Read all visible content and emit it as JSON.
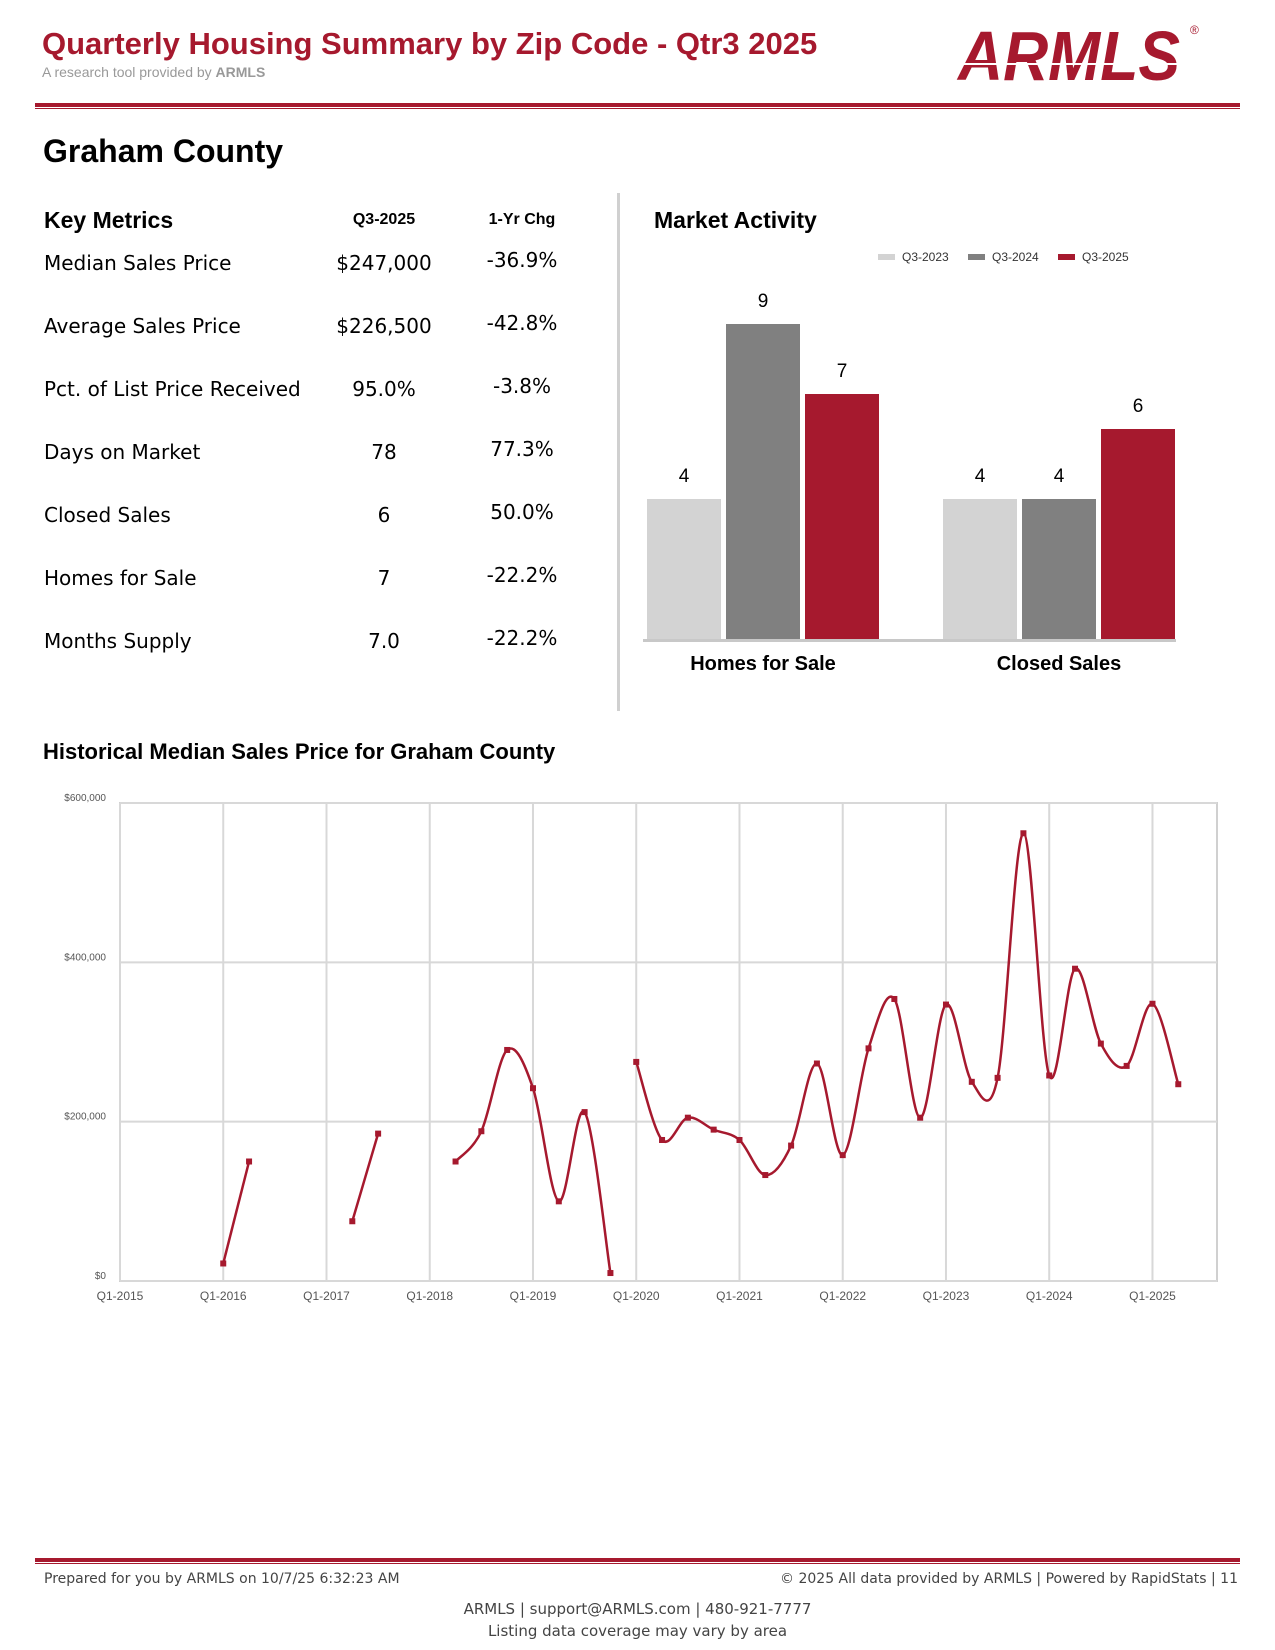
{
  "header": {
    "title": "Quarterly Housing Summary by Zip Code - Qtr3 2025",
    "subtitle_prefix": "A research tool provided by",
    "subtitle_brand": "ARMLS",
    "logo_text": "ARMLS",
    "logo_mark": "®"
  },
  "area": {
    "name": "Graham County"
  },
  "key_metrics": {
    "heading": "Key Metrics",
    "col_current": "Q3-2025",
    "col_change": "1-Yr Chg",
    "rows": [
      {
        "label": "Median Sales Price",
        "value": "$247,000",
        "change": "-36.9%"
      },
      {
        "label": "Average Sales Price",
        "value": "$226,500",
        "change": "-42.8%"
      },
      {
        "label": "Pct. of List Price Received",
        "value": "95.0%",
        "change": "-3.8%"
      },
      {
        "label": "Days on Market",
        "value": "78",
        "change": "77.3%"
      },
      {
        "label": "Closed Sales",
        "value": "6",
        "change": "50.0%"
      },
      {
        "label": "Homes for Sale",
        "value": "7",
        "change": "-22.2%"
      },
      {
        "label": "Months Supply",
        "value": "7.0",
        "change": "-22.2%"
      }
    ]
  },
  "chart_data": [
    {
      "type": "bar",
      "title": "Market Activity",
      "categories": [
        "Homes for Sale",
        "Closed Sales"
      ],
      "series": [
        {
          "name": "Q3-2023",
          "values": [
            4,
            4
          ],
          "color": "#d3d3d3"
        },
        {
          "name": "Q3-2024",
          "values": [
            9,
            4
          ],
          "color": "#808080"
        },
        {
          "name": "Q3-2025",
          "values": [
            7,
            6
          ],
          "color": "#a6192e"
        }
      ],
      "legend": "top-right",
      "ylim": [
        0,
        10
      ]
    },
    {
      "type": "line",
      "title": "Historical Median Sales Price for Graham County",
      "color": "#a6192e",
      "ylim": [
        0,
        600000
      ],
      "y_ticks": [
        "$0",
        "$200,000",
        "$400,000",
        "$600,000"
      ],
      "x_ticks": [
        "Q1-2015",
        "Q1-2016",
        "Q1-2017",
        "Q1-2018",
        "Q1-2019",
        "Q1-2020",
        "Q1-2021",
        "Q1-2022",
        "Q1-2023",
        "Q1-2024",
        "Q1-2025"
      ],
      "grid": true,
      "segments": [
        [
          {
            "x": "Q1-2016",
            "y": 22000
          },
          {
            "x": "Q2-2016",
            "y": 150000
          }
        ],
        [
          {
            "x": "Q2-2017",
            "y": 75000
          },
          {
            "x": "Q3-2017",
            "y": 185000
          }
        ],
        [
          {
            "x": "Q2-2018",
            "y": 150000
          },
          {
            "x": "Q3-2018",
            "y": 188000
          },
          {
            "x": "Q4-2018",
            "y": 290000
          },
          {
            "x": "Q1-2019",
            "y": 242000
          },
          {
            "x": "Q2-2019",
            "y": 100000
          },
          {
            "x": "Q3-2019",
            "y": 212000
          },
          {
            "x": "Q4-2019",
            "y": 10000
          }
        ],
        [
          {
            "x": "Q1-2020",
            "y": 275000
          },
          {
            "x": "Q2-2020",
            "y": 177000
          },
          {
            "x": "Q3-2020",
            "y": 205000
          },
          {
            "x": "Q4-2020",
            "y": 190000
          },
          {
            "x": "Q1-2021",
            "y": 177000
          },
          {
            "x": "Q2-2021",
            "y": 133000
          },
          {
            "x": "Q3-2021",
            "y": 170000
          },
          {
            "x": "Q4-2021",
            "y": 273000
          },
          {
            "x": "Q1-2022",
            "y": 158000
          },
          {
            "x": "Q2-2022",
            "y": 292000
          },
          {
            "x": "Q3-2022",
            "y": 354000
          },
          {
            "x": "Q4-2022",
            "y": 205000
          },
          {
            "x": "Q1-2023",
            "y": 347000
          },
          {
            "x": "Q2-2023",
            "y": 250000
          },
          {
            "x": "Q3-2023",
            "y": 255000
          },
          {
            "x": "Q4-2023",
            "y": 562000
          },
          {
            "x": "Q1-2024",
            "y": 258000
          },
          {
            "x": "Q2-2024",
            "y": 392000
          },
          {
            "x": "Q3-2024",
            "y": 298000
          },
          {
            "x": "Q4-2024",
            "y": 270000
          },
          {
            "x": "Q1-2025",
            "y": 348000
          },
          {
            "x": "Q2-2025",
            "y": 247000
          }
        ]
      ]
    }
  ],
  "footer": {
    "prepared": "Prepared for you by ARMLS on 10/7/25 6:32:23 AM",
    "copyright": "© 2025 All data provided by ARMLS | Powered by RapidStats  | 11",
    "contact": "ARMLS | support@ARMLS.com | 480-921-7777",
    "coverage": "Listing data coverage may vary by area"
  }
}
